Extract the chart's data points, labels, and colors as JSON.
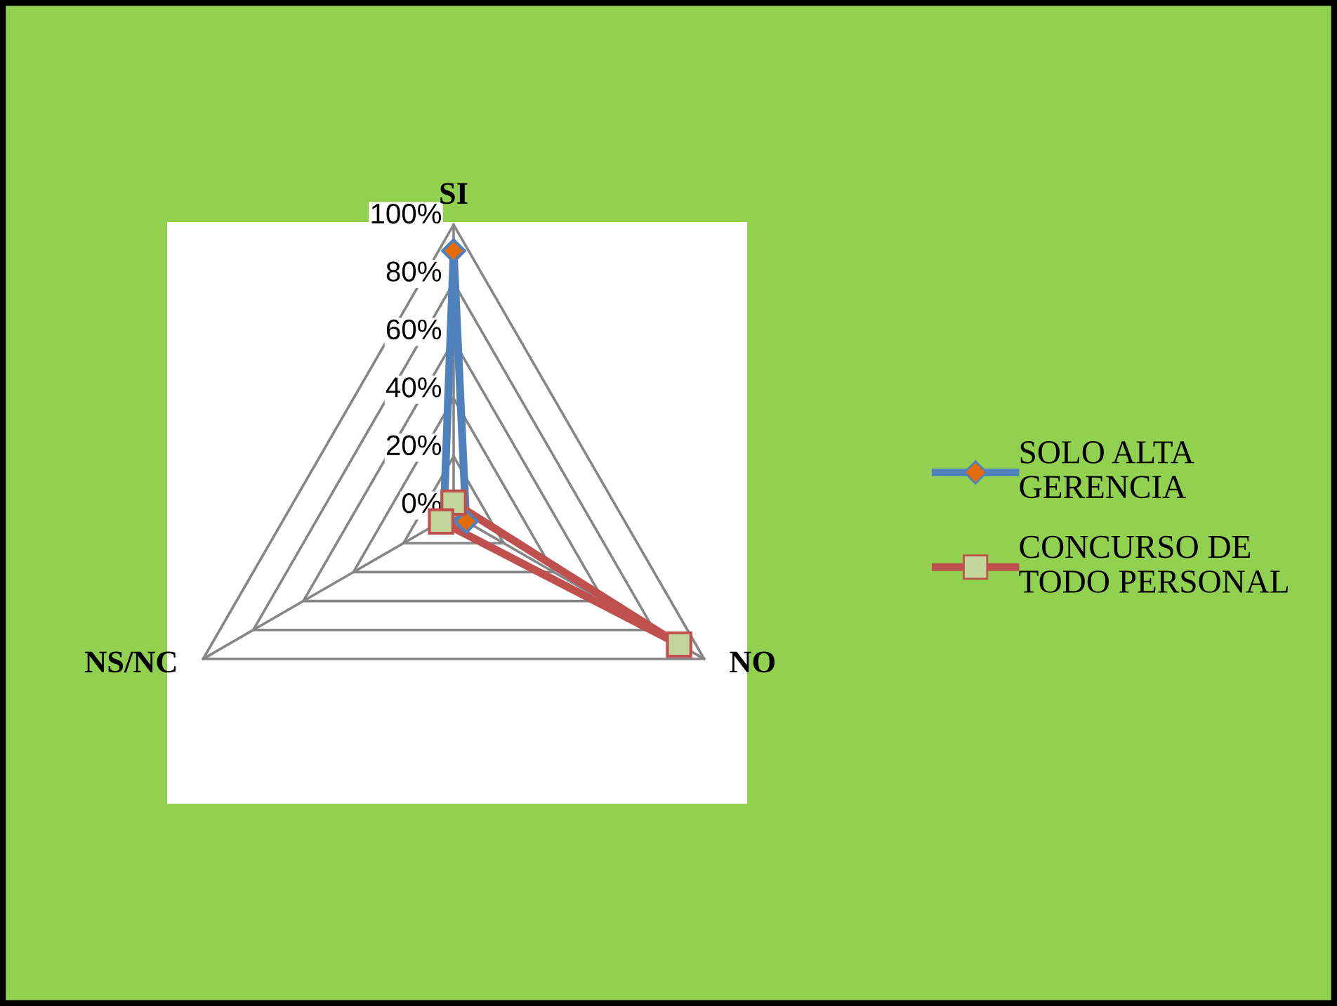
{
  "chart_data": {
    "type": "radar",
    "categories": [
      "SI",
      "NO",
      "NS/NC"
    ],
    "ylim": [
      0,
      100
    ],
    "yticks": [
      {
        "value": 0,
        "label": "0%"
      },
      {
        "value": 20,
        "label": "20%"
      },
      {
        "value": 40,
        "label": "40%"
      },
      {
        "value": 60,
        "label": "60%"
      },
      {
        "value": 80,
        "label": "80%"
      },
      {
        "value": 100,
        "label": "100%"
      }
    ],
    "series": [
      {
        "name": "SOLO ALTA GERENCIA",
        "color": "#4f81bd",
        "values": [
          91,
          5,
          4
        ],
        "marker": "diamond"
      },
      {
        "name": "CONCURSO DE TODO PERSONAL",
        "color": "#c0504d",
        "values": [
          4,
          90,
          5
        ],
        "marker": "square"
      }
    ],
    "legend": "right",
    "grid": true
  }
}
